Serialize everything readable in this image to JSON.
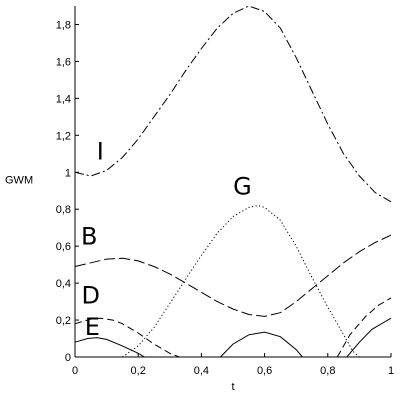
{
  "chart_data": {
    "type": "line",
    "xlabel": "t",
    "ylabel": "GWM",
    "xlim": [
      0,
      1
    ],
    "ylim": [
      0,
      1.9
    ],
    "x_ticks": [
      "0",
      "0,2",
      "0,4",
      "0,6",
      "0,8",
      "1"
    ],
    "y_ticks": [
      "0",
      "0,2",
      "0,4",
      "0,6",
      "0,8",
      "1",
      "1,2",
      "1,4",
      "1,6",
      "1,8"
    ],
    "grid": false,
    "series": [
      {
        "name": "I",
        "style": "dashdot",
        "points": [
          [
            0,
            1.0
          ],
          [
            0.05,
            0.98
          ],
          [
            0.1,
            1.01
          ],
          [
            0.15,
            1.08
          ],
          [
            0.2,
            1.18
          ],
          [
            0.25,
            1.3
          ],
          [
            0.3,
            1.42
          ],
          [
            0.35,
            1.55
          ],
          [
            0.4,
            1.67
          ],
          [
            0.45,
            1.78
          ],
          [
            0.5,
            1.86
          ],
          [
            0.55,
            1.9
          ],
          [
            0.6,
            1.87
          ],
          [
            0.65,
            1.78
          ],
          [
            0.7,
            1.62
          ],
          [
            0.75,
            1.44
          ],
          [
            0.8,
            1.26
          ],
          [
            0.85,
            1.1
          ],
          [
            0.9,
            0.98
          ],
          [
            0.95,
            0.89
          ],
          [
            1.0,
            0.84
          ]
        ],
        "label_at": [
          0.08,
          1.07
        ]
      },
      {
        "name": "G",
        "style": "dotted",
        "points": [
          [
            0.15,
            0.0
          ],
          [
            0.2,
            0.06
          ],
          [
            0.25,
            0.16
          ],
          [
            0.3,
            0.29
          ],
          [
            0.35,
            0.42
          ],
          [
            0.4,
            0.55
          ],
          [
            0.45,
            0.67
          ],
          [
            0.5,
            0.76
          ],
          [
            0.55,
            0.81
          ],
          [
            0.58,
            0.82
          ],
          [
            0.6,
            0.81
          ],
          [
            0.65,
            0.74
          ],
          [
            0.7,
            0.6
          ],
          [
            0.75,
            0.43
          ],
          [
            0.8,
            0.27
          ],
          [
            0.85,
            0.12
          ],
          [
            0.88,
            0.03
          ],
          [
            0.9,
            0.0
          ]
        ],
        "label_at": [
          0.53,
          0.88
        ]
      },
      {
        "name": "B",
        "style": "long-dash",
        "points": [
          [
            0,
            0.49
          ],
          [
            0.05,
            0.51
          ],
          [
            0.1,
            0.53
          ],
          [
            0.15,
            0.535
          ],
          [
            0.2,
            0.52
          ],
          [
            0.25,
            0.49
          ],
          [
            0.3,
            0.45
          ],
          [
            0.35,
            0.4
          ],
          [
            0.4,
            0.35
          ],
          [
            0.45,
            0.3
          ],
          [
            0.5,
            0.26
          ],
          [
            0.55,
            0.23
          ],
          [
            0.6,
            0.22
          ],
          [
            0.65,
            0.24
          ],
          [
            0.7,
            0.3
          ],
          [
            0.75,
            0.37
          ],
          [
            0.8,
            0.44
          ],
          [
            0.85,
            0.51
          ],
          [
            0.9,
            0.57
          ],
          [
            0.95,
            0.62
          ],
          [
            1.0,
            0.66
          ]
        ],
        "label_at": [
          0.045,
          0.61
        ]
      },
      {
        "name": "D",
        "style": "dashed",
        "points": [
          [
            0,
            0.18
          ],
          [
            0.05,
            0.205
          ],
          [
            0.08,
            0.21
          ],
          [
            0.12,
            0.2
          ],
          [
            0.15,
            0.18
          ],
          [
            0.2,
            0.13
          ],
          [
            0.25,
            0.07
          ],
          [
            0.3,
            0.02
          ],
          [
            0.33,
            0.0
          ]
        ],
        "label_at": [
          0.05,
          0.29
        ]
      },
      {
        "name": "E",
        "style": "solid",
        "points": [
          [
            0,
            0.08
          ],
          [
            0.04,
            0.1
          ],
          [
            0.07,
            0.105
          ],
          [
            0.1,
            0.095
          ],
          [
            0.15,
            0.06
          ],
          [
            0.2,
            0.02
          ],
          [
            0.22,
            0.0
          ]
        ],
        "label_at": [
          0.055,
          0.12
        ]
      },
      {
        "name": "",
        "style": "solid",
        "points": [
          [
            0.46,
            0.0
          ],
          [
            0.5,
            0.07
          ],
          [
            0.55,
            0.12
          ],
          [
            0.6,
            0.135
          ],
          [
            0.65,
            0.11
          ],
          [
            0.7,
            0.04
          ],
          [
            0.72,
            0.0
          ]
        ]
      },
      {
        "name": "",
        "style": "dashed",
        "points": [
          [
            0.83,
            0.0
          ],
          [
            0.87,
            0.12
          ],
          [
            0.92,
            0.22
          ],
          [
            0.96,
            0.28
          ],
          [
            1.0,
            0.32
          ]
        ]
      },
      {
        "name": "",
        "style": "solid",
        "points": [
          [
            0.86,
            0.0
          ],
          [
            0.9,
            0.08
          ],
          [
            0.94,
            0.15
          ],
          [
            1.0,
            0.21
          ]
        ]
      }
    ]
  }
}
